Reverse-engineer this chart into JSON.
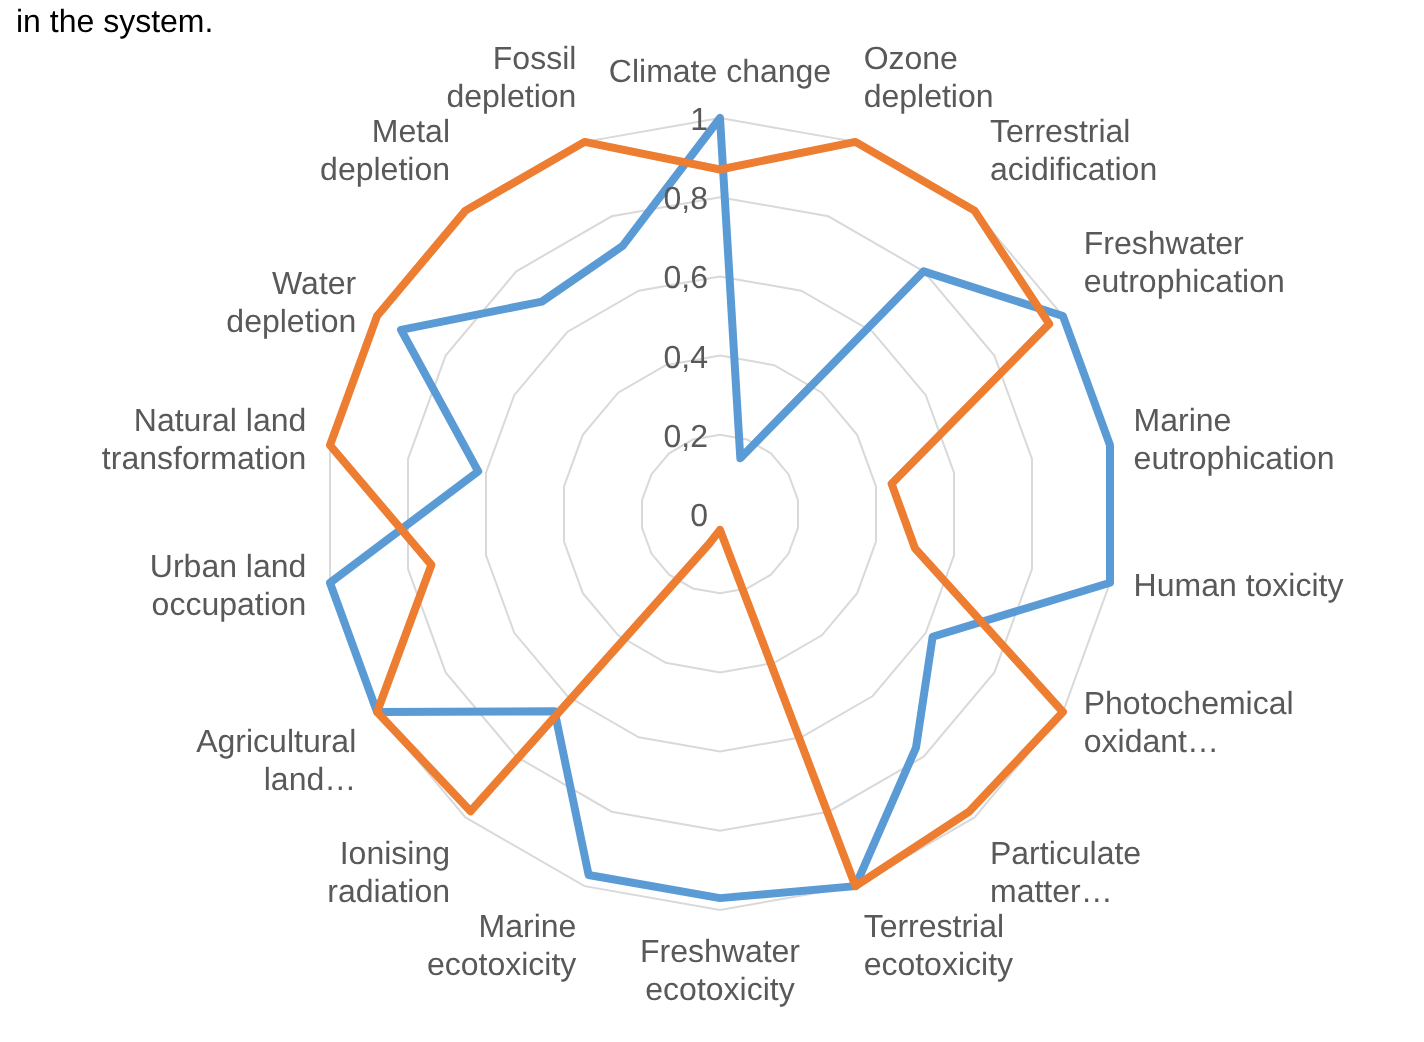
{
  "chart_data": {
    "type": "radar",
    "annotations": [
      "in the system."
    ],
    "categories": [
      "Climate change",
      "Ozone depletion",
      "Terrestrial acidification",
      "Freshwater eutrophication",
      "Marine eutrophication",
      "Human toxicity",
      "Photochemical oxidant…",
      "Particulate matter…",
      "Terrestrial ecotoxicity",
      "Freshwater ecotoxicity",
      "Marine ecotoxicity",
      "Ionising radiation",
      "Agricultural land…",
      "Urban land occupation",
      "Natural land transformation",
      "Water depletion",
      "Metal depletion",
      "Fossil depletion"
    ],
    "series": [
      {
        "color": "#5b9bd5",
        "values": [
          1,
          0.15,
          0.8,
          1,
          1,
          1,
          0.62,
          0.77,
          1,
          0.97,
          0.97,
          0.65,
          1,
          1,
          0.62,
          0.93,
          0.7,
          0.72
        ]
      },
      {
        "color": "#ed7d31",
        "values": [
          0.87,
          1,
          1,
          0.96,
          0.44,
          0.5,
          1,
          0.98,
          1,
          0.04,
          0.08,
          0.98,
          1,
          0.74,
          1,
          1,
          1,
          1
        ]
      }
    ],
    "ylim": [
      0,
      1
    ],
    "yticks": [
      0,
      {
        "value": 0.2,
        "label": "0,2"
      },
      {
        "value": 0.4,
        "label": "0,4"
      },
      {
        "value": 0.6,
        "label": "0,6"
      },
      {
        "value": 0.8,
        "label": "0,8"
      },
      1
    ],
    "grid": true,
    "marker": "none",
    "line_style": "solid"
  }
}
